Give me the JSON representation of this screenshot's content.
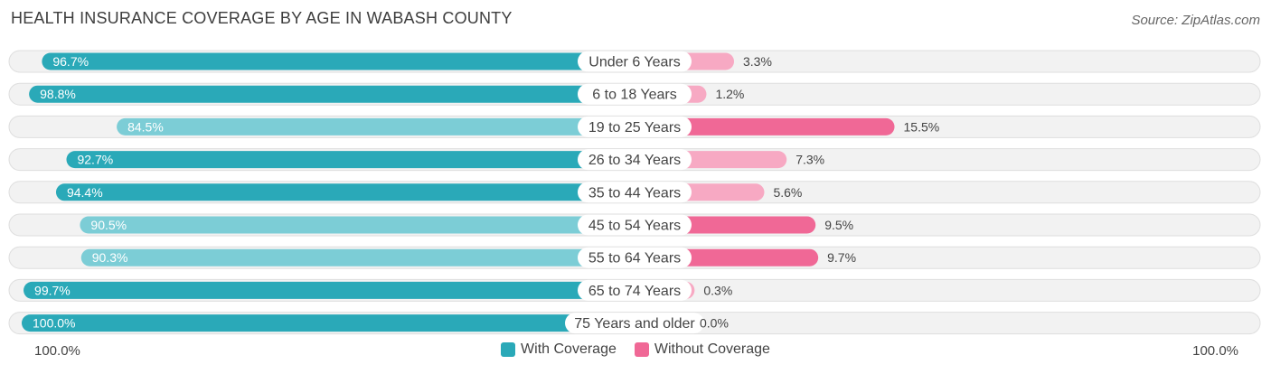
{
  "colors": {
    "with_strong": "#2aa9b8",
    "with_light": "#7ccdd6",
    "without_strong": "#f06896",
    "without_light": "#f7a9c3"
  },
  "chart_data": {
    "type": "bar",
    "orientation": "horizontal-diverging",
    "title": "HEALTH INSURANCE COVERAGE BY AGE IN WABASH COUNTY",
    "source": "Source: ZipAtlas.com",
    "categories": [
      "Under 6 Years",
      "6 to 18 Years",
      "19 to 25 Years",
      "26 to 34 Years",
      "35 to 44 Years",
      "45 to 54 Years",
      "55 to 64 Years",
      "65 to 74 Years",
      "75 Years and older"
    ],
    "series": [
      {
        "name": "With Coverage",
        "values": [
          96.7,
          98.8,
          84.5,
          92.7,
          94.4,
          90.5,
          90.3,
          99.7,
          100.0
        ],
        "labels": [
          "96.7%",
          "98.8%",
          "84.5%",
          "92.7%",
          "94.4%",
          "90.5%",
          "90.3%",
          "99.7%",
          "100.0%"
        ]
      },
      {
        "name": "Without Coverage",
        "values": [
          3.3,
          1.2,
          15.5,
          7.3,
          5.6,
          9.5,
          9.7,
          0.3,
          0.0
        ],
        "labels": [
          "3.3%",
          "1.2%",
          "15.5%",
          "7.3%",
          "5.6%",
          "9.5%",
          "9.7%",
          "0.3%",
          "0.0%"
        ]
      }
    ],
    "xlim": [
      0,
      100
    ],
    "axis_left_label": "100.0%",
    "axis_right_label": "100.0%",
    "legend": [
      "With Coverage",
      "Without Coverage"
    ],
    "legend_position": "bottom-center"
  }
}
